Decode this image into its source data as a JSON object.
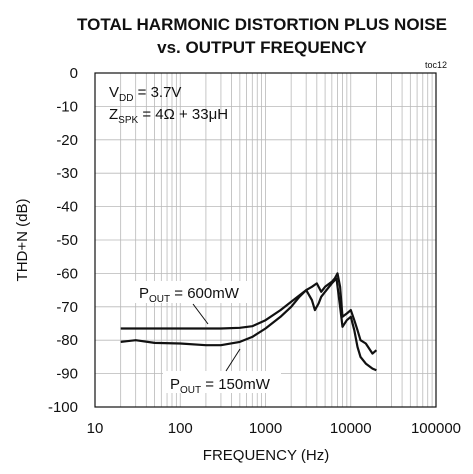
{
  "chart_data": {
    "type": "line",
    "title_line1": "TOTAL HARMONIC DISTORTION PLUS NOISE",
    "title_line2": "vs. OUTPUT FREQUENCY",
    "corner_label": "toc12",
    "xlabel": "FREQUENCY (Hz)",
    "ylabel": "THD+N (dB)",
    "x_scale": "log",
    "xlim": [
      10,
      100000
    ],
    "ylim": [
      -100,
      0
    ],
    "grid": true,
    "x_tick_labels": [
      "10",
      "100",
      "1000",
      "10000",
      "100000"
    ],
    "y_tick_labels": [
      "0",
      "-10",
      "-20",
      "-30",
      "-40",
      "-50",
      "-60",
      "-70",
      "-80",
      "-90",
      "-100"
    ],
    "conditions": {
      "vdd": {
        "main": "V",
        "sub": "DD",
        "rest": " = 3.7V"
      },
      "zspk": {
        "main": "Z",
        "sub": "SPK",
        "rest": " = 4Ω + 33μH"
      }
    },
    "annotations": [
      {
        "main": "P",
        "sub": "OUT",
        "rest": " = 600mW"
      },
      {
        "main": "P",
        "sub": "OUT",
        "rest": " = 150mW"
      }
    ],
    "series": [
      {
        "x": [
          20,
          50,
          100,
          200,
          300,
          500,
          700,
          1000,
          1500,
          2000,
          3000,
          3500,
          4000,
          4500,
          5000,
          6000,
          6500,
          7000,
          7500,
          8000,
          9000,
          10000,
          11000,
          12000,
          13000,
          15000,
          18000,
          20000
        ],
        "y": [
          -76.5,
          -76.5,
          -76.5,
          -76.5,
          -76.5,
          -76.3,
          -75.8,
          -74,
          -71,
          -68.5,
          -65,
          -64,
          -63,
          -65.5,
          -64,
          -62.5,
          -61.5,
          -60,
          -64,
          -73,
          -72,
          -71,
          -74,
          -77,
          -80,
          -81,
          -84,
          -83
        ]
      },
      {
        "x": [
          20,
          30,
          50,
          100,
          200,
          300,
          500,
          700,
          1000,
          1500,
          2000,
          2500,
          3000,
          3500,
          3800,
          4200,
          4500,
          5000,
          6000,
          6800,
          7500,
          8000,
          9000,
          10000,
          11000,
          12000,
          13000,
          15000,
          18000,
          20000
        ],
        "y": [
          -80.5,
          -80,
          -80.8,
          -81,
          -81.5,
          -81.5,
          -80.5,
          -79,
          -76.5,
          -73,
          -70,
          -67,
          -65,
          -68,
          -71,
          -69,
          -67,
          -65.5,
          -63,
          -61.5,
          -70,
          -76,
          -74,
          -73,
          -77,
          -82,
          -85,
          -87,
          -88.5,
          -89
        ]
      }
    ]
  }
}
